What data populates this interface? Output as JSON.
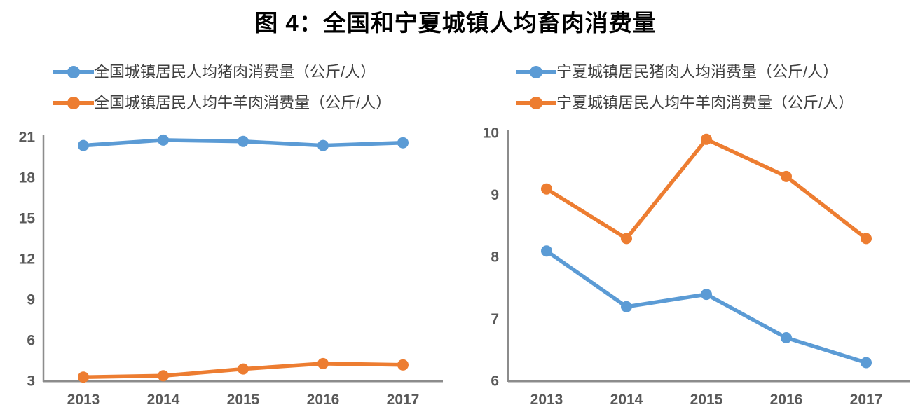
{
  "figure": {
    "title": "图 4：全国和宁夏城镇人均畜肉消费量"
  },
  "colors": {
    "series_blue": "#5B9BD5",
    "series_orange": "#ED7D31",
    "axis_line": "#8C8C8C",
    "tick_text": "#595959",
    "legend_text": "#3f3f3f"
  },
  "chart_data": [
    {
      "type": "line",
      "categories": [
        "2013",
        "2014",
        "2015",
        "2016",
        "2017"
      ],
      "series": [
        {
          "name": "全国城镇居民人均猪肉消费量（公斤/人）",
          "color": "#5B9BD5",
          "values": [
            20.4,
            20.8,
            20.7,
            20.4,
            20.6
          ]
        },
        {
          "name": "全国城镇居民人均牛羊肉消费量（公斤/人）",
          "color": "#ED7D31",
          "values": [
            3.3,
            3.4,
            3.9,
            4.3,
            4.2
          ]
        }
      ],
      "xlabel": "",
      "ylabel": "",
      "ylim": [
        3,
        21
      ],
      "yticks": [
        3,
        6,
        9,
        12,
        15,
        18,
        21
      ],
      "grid": false,
      "legend_position": "top-left"
    },
    {
      "type": "line",
      "categories": [
        "2013",
        "2014",
        "2015",
        "2016",
        "2017"
      ],
      "series": [
        {
          "name": "宁夏城镇居民猪肉人均消费量（公斤/人）",
          "color": "#5B9BD5",
          "values": [
            8.1,
            7.2,
            7.4,
            6.7,
            6.3
          ]
        },
        {
          "name": "宁夏城镇居民人均牛羊肉消费量（公斤/人）",
          "color": "#ED7D31",
          "values": [
            9.1,
            8.3,
            9.9,
            9.3,
            8.3
          ]
        }
      ],
      "xlabel": "",
      "ylabel": "",
      "ylim": [
        6,
        10
      ],
      "yticks": [
        6,
        7,
        8,
        9,
        10
      ],
      "grid": false,
      "legend_position": "top-left"
    }
  ]
}
